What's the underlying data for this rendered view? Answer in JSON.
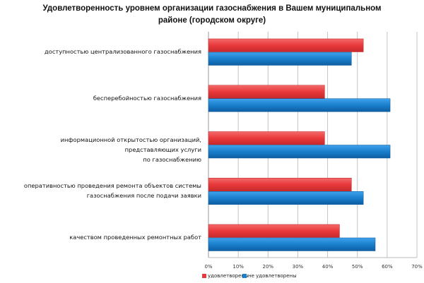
{
  "chart_data": {
    "type": "bar",
    "orientation": "horizontal",
    "title": "Удовлетворенность уровнем организации газоснабжения в Вашем муниципальном районе (городском округе)",
    "title_lines": [
      "Удовлетворенность уровнем организации газоснабжения в Вашем муниципальном",
      "районе (городском округе)"
    ],
    "categories": [
      "доступностью централизованного газоснабжения",
      "бесперебойностью газоснабжения",
      "информационной открытостью организаций, представляющих услуги по газоснабжению",
      "оперативностью проведения ремонта объектов системы газоснабжения после подачи заявки",
      "качеством проведенных ремонтных работ"
    ],
    "category_lines": [
      [
        "доступностью централизованного газоснабжения"
      ],
      [
        "бесперебойностью газоснабжения"
      ],
      [
        "информационной открытостью организаций, представляющих услуги",
        "по газоснабжению"
      ],
      [
        "оперативностью проведения ремонта объектов системы",
        "газоснабжения после подачи заявки"
      ],
      [
        "качеством проведенных ремонтных работ"
      ]
    ],
    "series": [
      {
        "name": "удовлетворены",
        "color": "#e8393b",
        "values": [
          52,
          39,
          39,
          48,
          44
        ]
      },
      {
        "name": "не удовлетворены",
        "color": "#1a7fcc",
        "values": [
          48,
          61,
          61,
          52,
          56
        ]
      }
    ],
    "xlim": [
      0,
      70
    ],
    "xticks": [
      "0%",
      "10%",
      "20%",
      "30%",
      "40%",
      "50%",
      "60%",
      "70%"
    ],
    "grid": true,
    "legend_position": "bottom-left",
    "xlabel": "",
    "ylabel": ""
  }
}
